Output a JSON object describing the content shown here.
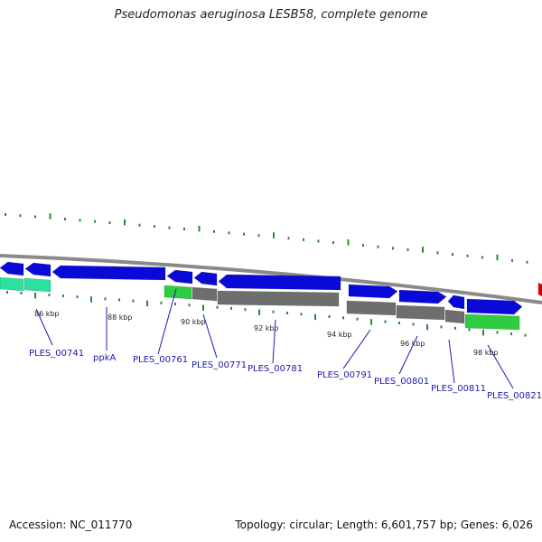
{
  "title": "Pseudomonas aeruginosa LESB58, complete genome",
  "accession": "Accession: NC_011770",
  "summary": "Topology: circular; Length: 6,601,757 bp; Genes: 6,026",
  "colors": {
    "backbone": "#8a8a8a",
    "forward_gene": "#0a0ad8",
    "feature_green": "#2ecc40",
    "feature_teal": "#2ee0a0",
    "feature_gray": "#6e6e6e",
    "feature_red": "#e00000",
    "tick": "#2a8a2a",
    "leader_line": "#1a1ab0"
  },
  "scale_labels": [
    "86 kbp",
    "88 kbp",
    "90 kbp",
    "92 kbp",
    "94 kbp",
    "96 kbp",
    "98 kbp"
  ],
  "gene_labels": [
    "PLES_00741",
    "ppkA",
    "PLES_00761",
    "PLES_00771",
    "PLES_00781",
    "PLES_00791",
    "PLES_00801",
    "PLES_00811",
    "PLES_00821"
  ]
}
